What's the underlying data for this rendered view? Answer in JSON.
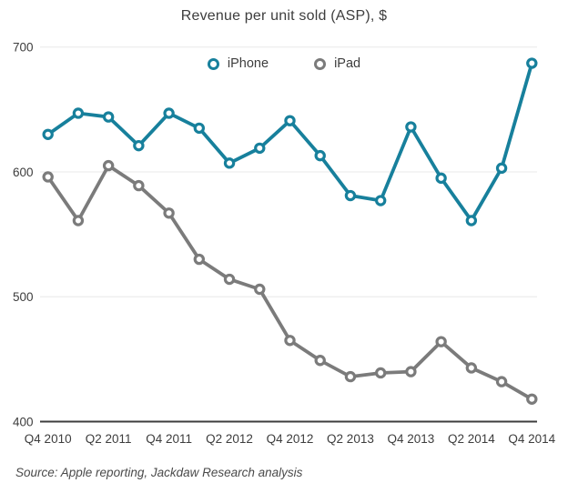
{
  "source": "Source: Apple reporting, Jackdaw Research analysis",
  "chart_data": {
    "type": "line",
    "title": "Revenue per unit sold (ASP), $",
    "x": [
      "Q4 2010",
      "Q1 2011",
      "Q2 2011",
      "Q3 2011",
      "Q4 2011",
      "Q1 2012",
      "Q2 2012",
      "Q3 2012",
      "Q4 2012",
      "Q1 2013",
      "Q2 2013",
      "Q3 2013",
      "Q4 2013",
      "Q1 2014",
      "Q2 2014",
      "Q3 2014",
      "Q4 2014"
    ],
    "x_tick_labels": [
      "Q4 2010",
      "Q2 2011",
      "Q4 2011",
      "Q2 2012",
      "Q4 2012",
      "Q2 2013",
      "Q4 2013",
      "Q2 2014",
      "Q4 2014"
    ],
    "series": [
      {
        "name": "iPhone",
        "color": "#17809C",
        "values": [
          630,
          647,
          644,
          621,
          647,
          635,
          607,
          619,
          641,
          613,
          581,
          577,
          636,
          595,
          561,
          603,
          687
        ]
      },
      {
        "name": "iPad",
        "color": "#7B7B7B",
        "values": [
          596,
          561,
          605,
          589,
          567,
          530,
          514,
          506,
          465,
          449,
          436,
          439,
          440,
          464,
          443,
          432,
          418
        ]
      }
    ],
    "ylim": [
      400,
      700
    ],
    "yticks": [
      400,
      500,
      600,
      700
    ],
    "grid": "horizontal-light",
    "legend_position": "top-center",
    "marker": "open-circle",
    "text_color": "#3d3d3d",
    "gridline_color": "#e8e8e8",
    "axis_color": "#3d3d3d"
  }
}
